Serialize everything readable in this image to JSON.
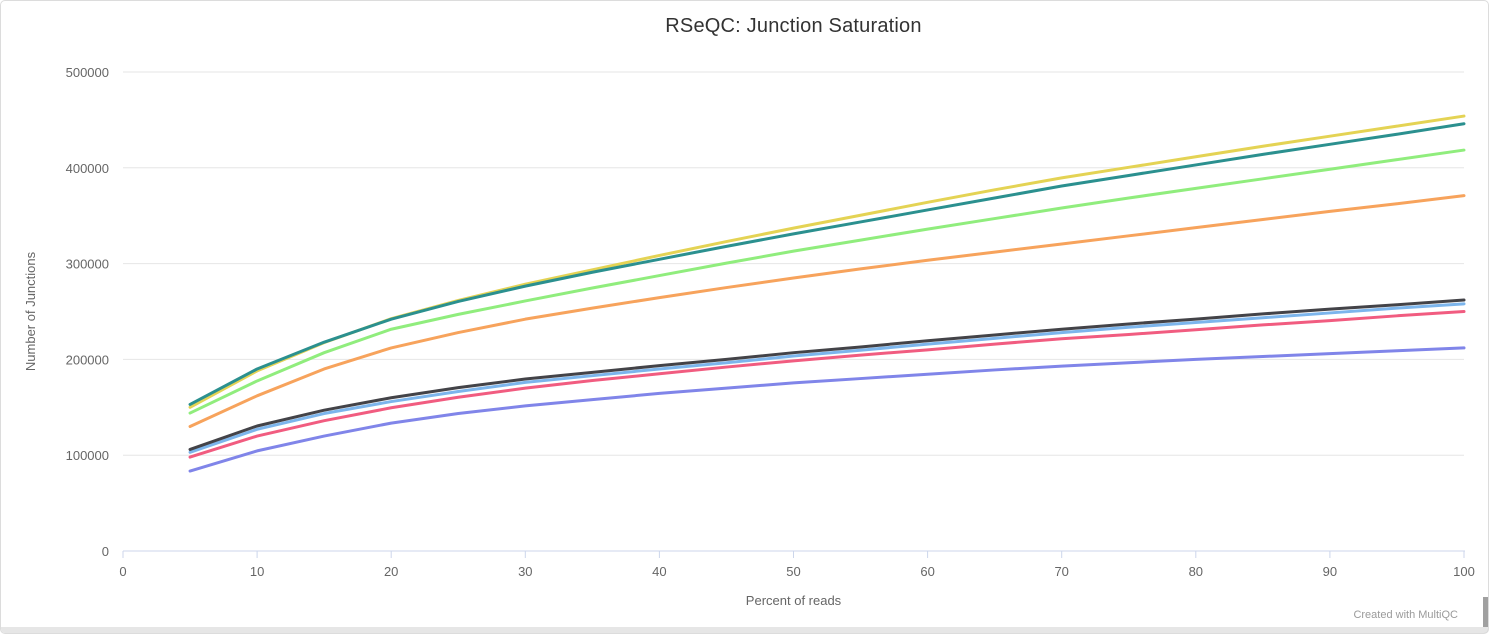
{
  "page": {
    "credit": "Created with MultiQC"
  },
  "chart_data": {
    "type": "line",
    "title": "RSeQC: Junction Saturation",
    "xlabel": "Percent of reads",
    "ylabel": "Number of Junctions",
    "xlim": [
      0,
      100
    ],
    "ylim": [
      0,
      500000
    ],
    "x_ticks": [
      0,
      10,
      20,
      30,
      40,
      50,
      60,
      70,
      80,
      90,
      100
    ],
    "y_ticks": [
      0,
      100000,
      200000,
      300000,
      400000,
      500000
    ],
    "grid": "horizontal-only",
    "legend": "none",
    "x": [
      5,
      10,
      15,
      20,
      25,
      30,
      35,
      40,
      45,
      50,
      55,
      60,
      65,
      70,
      75,
      80,
      85,
      90,
      95,
      100
    ],
    "series": [
      {
        "name": "blue",
        "color": "#7cb5ec",
        "values": [
          103000,
          127000,
          143500,
          156000,
          166500,
          176000,
          183000,
          190000,
          196500,
          203500,
          209500,
          216000,
          222000,
          228000,
          233500,
          238500,
          243500,
          248500,
          253500,
          258000
        ]
      },
      {
        "name": "dark-gray",
        "color": "#434348",
        "values": [
          106000,
          130500,
          147000,
          160000,
          170500,
          179500,
          186500,
          193500,
          200000,
          207000,
          213000,
          219500,
          225500,
          231500,
          237000,
          242000,
          247500,
          252500,
          257000,
          262000
        ]
      },
      {
        "name": "green",
        "color": "#90ed7d",
        "values": [
          144000,
          177500,
          207000,
          231500,
          247000,
          261000,
          274500,
          287500,
          300500,
          313000,
          324500,
          336000,
          347000,
          358000,
          368500,
          378500,
          388500,
          398500,
          408500,
          418500
        ]
      },
      {
        "name": "orange",
        "color": "#f7a35c",
        "values": [
          130000,
          162000,
          190000,
          212000,
          228000,
          242000,
          253500,
          264500,
          275000,
          285000,
          294500,
          303500,
          312000,
          320500,
          329000,
          337500,
          346000,
          354500,
          362500,
          371000
        ]
      },
      {
        "name": "purple",
        "color": "#8085e9",
        "values": [
          83500,
          104500,
          120000,
          133500,
          143500,
          151500,
          158000,
          164500,
          170000,
          175500,
          180000,
          184500,
          189000,
          193000,
          196500,
          200000,
          203000,
          206000,
          209000,
          212000
        ]
      },
      {
        "name": "pink",
        "color": "#f15c80",
        "values": [
          98000,
          120000,
          136000,
          149500,
          160500,
          170000,
          178000,
          185000,
          192000,
          198500,
          204500,
          210000,
          216000,
          221500,
          226000,
          231000,
          236000,
          240500,
          245500,
          250000
        ]
      },
      {
        "name": "yellow",
        "color": "#e4d354",
        "values": [
          150000,
          188000,
          217500,
          242500,
          261500,
          278500,
          293500,
          308500,
          323000,
          337000,
          350500,
          364000,
          377000,
          389500,
          400500,
          411500,
          422500,
          433000,
          443500,
          454000
        ]
      },
      {
        "name": "teal",
        "color": "#2b908f",
        "values": [
          153000,
          190000,
          218000,
          242000,
          260500,
          276500,
          291000,
          304500,
          318000,
          331000,
          343500,
          356000,
          368500,
          381000,
          392000,
          403000,
          414000,
          424500,
          435000,
          446000
        ]
      }
    ]
  },
  "style": {
    "title_color": "#333333",
    "tick_label_color": "#666666",
    "axis_title_color": "#666666",
    "grid_color": "#e6e6e6",
    "axis_line_color": "#ccd6eb",
    "line_width": 3,
    "tick_font_size": 13,
    "axis_title_font_size": 13
  }
}
